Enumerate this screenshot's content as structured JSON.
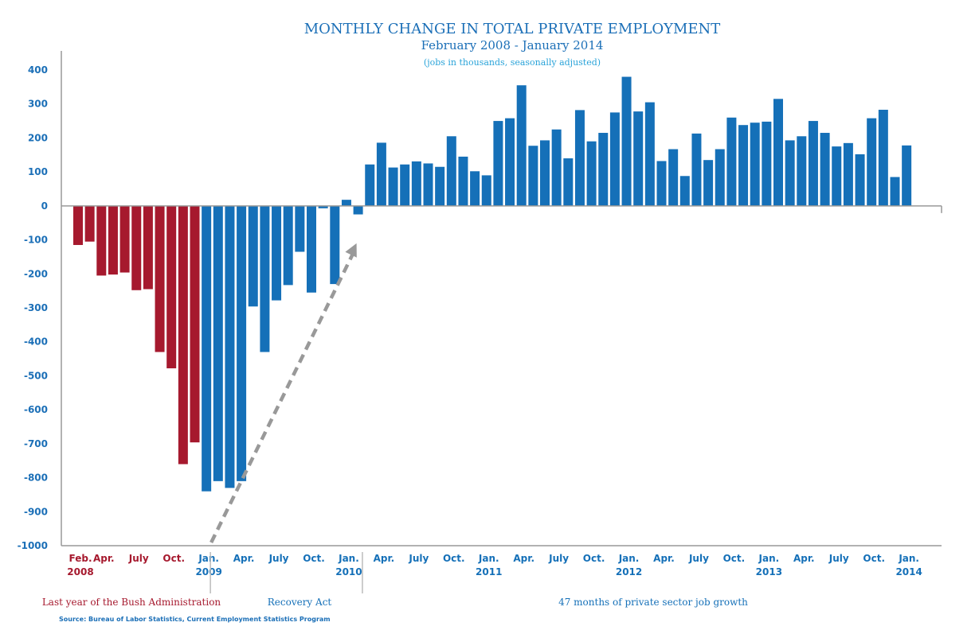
{
  "colors": {
    "bush": "#a6192e",
    "obama": "#1570b8",
    "axis": "#999999",
    "arrow": "#999999",
    "title": "#1b6fb7",
    "subtitle_note": "#29a3d9"
  },
  "chart_data": {
    "type": "bar",
    "title": "MONTHLY CHANGE IN TOTAL PRIVATE EMPLOYMENT",
    "subtitle": "February 2008 - January 2014",
    "note": "(jobs in thousands, seasonally adjusted)",
    "source": "Source: Bureau of Labor Statistics, Current Employment Statistics Program",
    "ylim": [
      -1000,
      400
    ],
    "yticks": [
      400,
      300,
      200,
      100,
      0,
      -100,
      -200,
      -300,
      -400,
      -500,
      -600,
      -700,
      -800,
      -900,
      -1000
    ],
    "categories": [
      "Feb 2008",
      "Mar 2008",
      "Apr 2008",
      "May 2008",
      "Jun 2008",
      "Jul 2008",
      "Aug 2008",
      "Sep 2008",
      "Oct 2008",
      "Nov 2008",
      "Dec 2008",
      "Jan 2009",
      "Feb 2009",
      "Mar 2009",
      "Apr 2009",
      "May 2009",
      "Jun 2009",
      "Jul 2009",
      "Aug 2009",
      "Sep 2009",
      "Oct 2009",
      "Nov 2009",
      "Dec 2009",
      "Jan 2010",
      "Feb 2010",
      "Mar 2010",
      "Apr 2010",
      "May 2010",
      "Jun 2010",
      "Jul 2010",
      "Aug 2010",
      "Sep 2010",
      "Oct 2010",
      "Nov 2010",
      "Dec 2010",
      "Jan 2011",
      "Feb 2011",
      "Mar 2011",
      "Apr 2011",
      "May 2011",
      "Jun 2011",
      "Jul 2011",
      "Aug 2011",
      "Sep 2011",
      "Oct 2011",
      "Nov 2011",
      "Dec 2011",
      "Jan 2012",
      "Feb 2012",
      "Mar 2012",
      "Apr 2012",
      "May 2012",
      "Jun 2012",
      "Jul 2012",
      "Aug 2012",
      "Sep 2012",
      "Oct 2012",
      "Nov 2012",
      "Dec 2012",
      "Jan 2013",
      "Feb 2013",
      "Mar 2013",
      "Apr 2013",
      "May 2013",
      "Jun 2013",
      "Jul 2013",
      "Aug 2013",
      "Sep 2013",
      "Oct 2013",
      "Nov 2013",
      "Dec 2013",
      "Jan 2014"
    ],
    "values": [
      -115,
      -105,
      -205,
      -202,
      -196,
      -248,
      -245,
      -430,
      -478,
      -760,
      -696,
      -840,
      -810,
      -830,
      -810,
      -296,
      -430,
      -278,
      -233,
      -135,
      -255,
      -7,
      -230,
      18,
      -25,
      122,
      186,
      113,
      122,
      131,
      125,
      115,
      205,
      145,
      102,
      90,
      250,
      258,
      355,
      177,
      193,
      225,
      140,
      282,
      190,
      215,
      275,
      380,
      278,
      305,
      132,
      167,
      88,
      213,
      135,
      167,
      260,
      238,
      245,
      248,
      315,
      193,
      205,
      250,
      215,
      175,
      185,
      152,
      258,
      283,
      85,
      178
    ],
    "bush_count": 11,
    "x_ticks": [
      {
        "label": "Feb.",
        "year": "2008",
        "index": 0,
        "color": "bush"
      },
      {
        "label": "Apr.",
        "year": "",
        "index": 2,
        "color": "bush"
      },
      {
        "label": "July",
        "year": "",
        "index": 5,
        "color": "bush"
      },
      {
        "label": "Oct.",
        "year": "",
        "index": 8,
        "color": "bush"
      },
      {
        "label": "Jan.",
        "year": "2009",
        "index": 11,
        "color": "obama"
      },
      {
        "label": "Apr.",
        "year": "",
        "index": 14,
        "color": "obama"
      },
      {
        "label": "July",
        "year": "",
        "index": 17,
        "color": "obama"
      },
      {
        "label": "Oct.",
        "year": "",
        "index": 20,
        "color": "obama"
      },
      {
        "label": "Jan.",
        "year": "2010",
        "index": 23,
        "color": "obama"
      },
      {
        "label": "Apr.",
        "year": "",
        "index": 26,
        "color": "obama"
      },
      {
        "label": "July",
        "year": "",
        "index": 29,
        "color": "obama"
      },
      {
        "label": "Oct.",
        "year": "",
        "index": 32,
        "color": "obama"
      },
      {
        "label": "Jan.",
        "year": "2011",
        "index": 35,
        "color": "obama"
      },
      {
        "label": "Apr.",
        "year": "",
        "index": 38,
        "color": "obama"
      },
      {
        "label": "July",
        "year": "",
        "index": 41,
        "color": "obama"
      },
      {
        "label": "Oct.",
        "year": "",
        "index": 44,
        "color": "obama"
      },
      {
        "label": "Jan.",
        "year": "2012",
        "index": 47,
        "color": "obama"
      },
      {
        "label": "Apr.",
        "year": "",
        "index": 50,
        "color": "obama"
      },
      {
        "label": "July",
        "year": "",
        "index": 53,
        "color": "obama"
      },
      {
        "label": "Oct.",
        "year": "",
        "index": 56,
        "color": "obama"
      },
      {
        "label": "Jan.",
        "year": "2013",
        "index": 59,
        "color": "obama"
      },
      {
        "label": "Apr.",
        "year": "",
        "index": 62,
        "color": "obama"
      },
      {
        "label": "July",
        "year": "",
        "index": 65,
        "color": "obama"
      },
      {
        "label": "Oct.",
        "year": "",
        "index": 68,
        "color": "obama"
      },
      {
        "label": "Jan.",
        "year": "2014",
        "index": 71,
        "color": "obama"
      }
    ],
    "periods": [
      {
        "label": "Last year of the Bush Administration",
        "color": "bush"
      },
      {
        "label": "Recovery Act",
        "color": "obama"
      },
      {
        "label": "47 months of private sector job growth",
        "color": "obama"
      }
    ]
  }
}
